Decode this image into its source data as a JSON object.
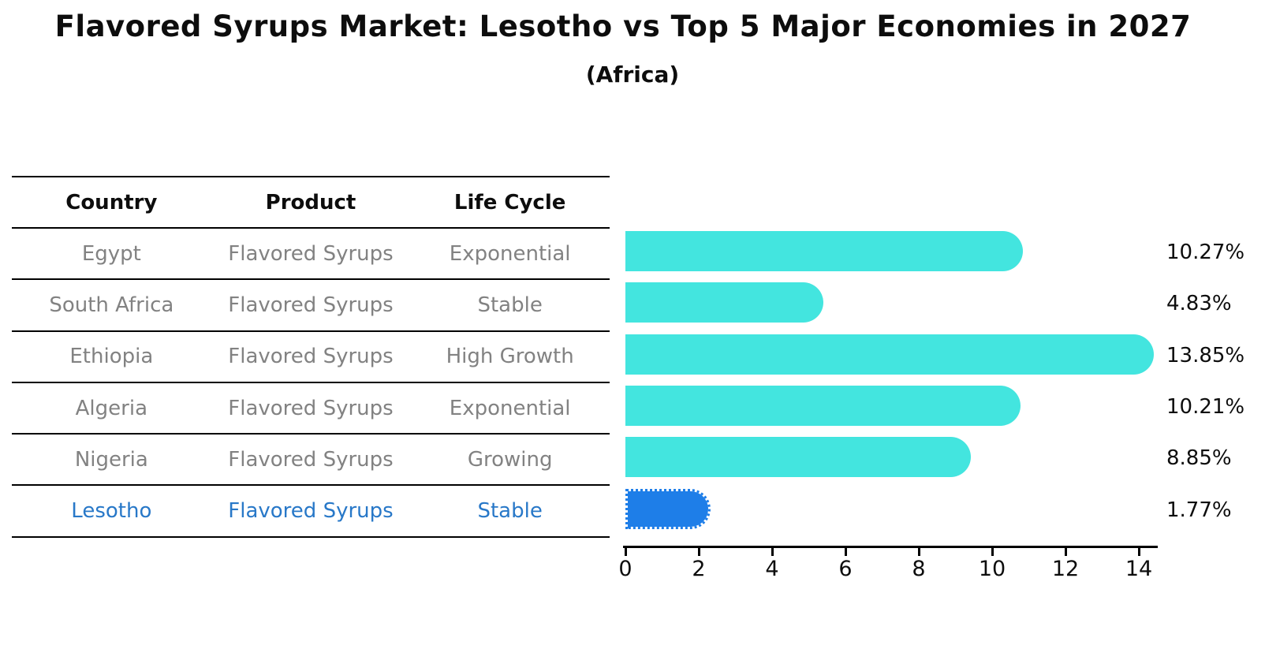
{
  "title": "Flavored Syrups Market: Lesotho vs Top 5 Major Economies in 2027",
  "subtitle": "(Africa)",
  "table": {
    "headers": [
      "Country",
      "Product",
      "Life Cycle"
    ],
    "rows": [
      {
        "country": "Egypt",
        "product": "Flavored Syrups",
        "life_cycle": "Exponential",
        "highlight": false
      },
      {
        "country": "South Africa",
        "product": "Flavored Syrups",
        "life_cycle": "Stable",
        "highlight": false
      },
      {
        "country": "Ethiopia",
        "product": "Flavored Syrups",
        "life_cycle": "High Growth",
        "highlight": false
      },
      {
        "country": "Algeria",
        "product": "Flavored Syrups",
        "life_cycle": "Exponential",
        "highlight": false
      },
      {
        "country": "Nigeria",
        "product": "Flavored Syrups",
        "life_cycle": "Growing",
        "highlight": false
      },
      {
        "country": "Lesotho",
        "product": "Flavored Syrups",
        "life_cycle": "Stable",
        "highlight": true
      }
    ]
  },
  "chart_data": {
    "type": "bar",
    "orientation": "horizontal",
    "title": "Flavored Syrups Market: Lesotho vs Top 5 Major Economies in 2027 (Africa)",
    "categories": [
      "Egypt",
      "South Africa",
      "Ethiopia",
      "Algeria",
      "Nigeria",
      "Lesotho"
    ],
    "values": [
      10.27,
      4.83,
      13.85,
      10.21,
      8.85,
      1.77
    ],
    "value_labels": [
      "10.27%",
      "4.83%",
      "13.85%",
      "10.21%",
      "8.85%",
      "1.77%"
    ],
    "xlabel": "",
    "ylabel": "",
    "xlim": [
      0,
      14.5
    ],
    "x_ticks": [
      0,
      2,
      4,
      6,
      8,
      10,
      12,
      14
    ],
    "grid": false,
    "legend": "none",
    "bar_color": "#43E5DF",
    "highlight_color": "#1E7EE8",
    "highlight_index": 5,
    "highlight_text_color": "#2878C8",
    "row_text_color": "#828282"
  }
}
